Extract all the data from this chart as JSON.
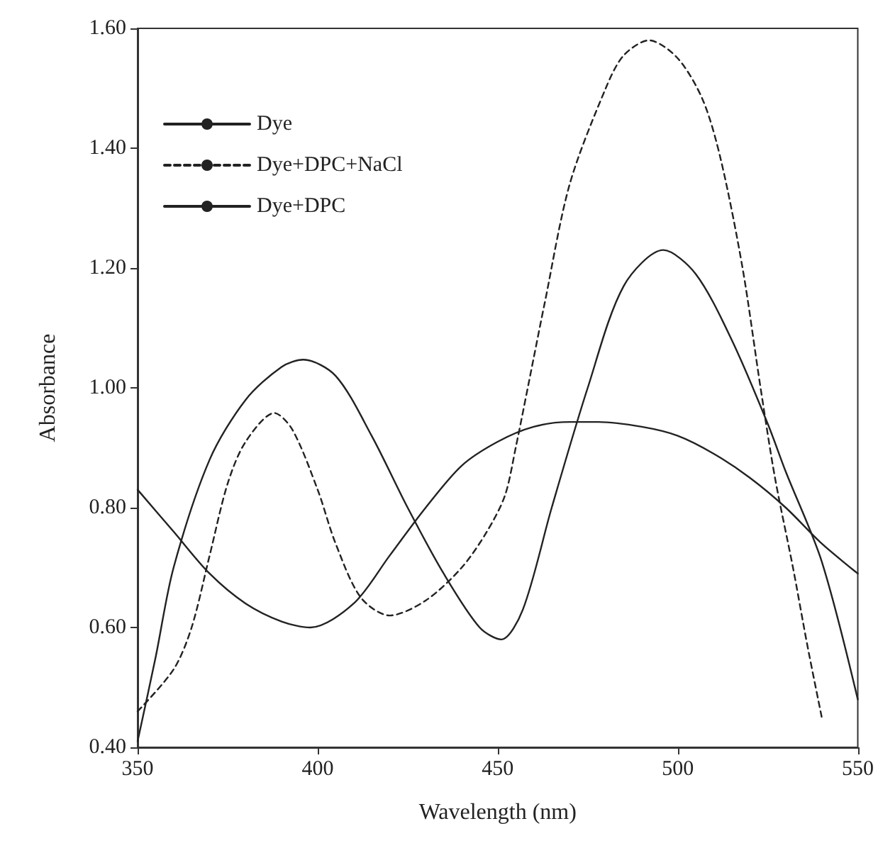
{
  "chart_data": {
    "type": "line",
    "xlabel": "Wavelength (nm)",
    "ylabel": "Absorbance",
    "xlim": [
      350,
      550
    ],
    "xticks": [
      350,
      400,
      450,
      500,
      550
    ],
    "ylim": [
      0.4,
      1.6
    ],
    "yticks": [
      {
        "value": 0.4,
        "label": "0.40"
      },
      {
        "value": 0.6,
        "label": "0.60"
      },
      {
        "value": 0.8,
        "label": "0.80"
      },
      {
        "value": 1.0,
        "label": "1.00"
      },
      {
        "value": 1.2,
        "label": "1.20"
      },
      {
        "value": 1.4,
        "label": "1.40"
      },
      {
        "value": 1.6,
        "label": "1.60"
      }
    ],
    "grid": false,
    "legend": "top left",
    "marker": "none",
    "series": [
      {
        "name": "Dye",
        "color": "#222222",
        "line_style": "solid",
        "x": [
          350,
          360,
          370,
          380,
          390,
          398,
          410,
          420,
          430,
          440,
          450,
          460,
          470,
          478,
          490,
          500,
          510,
          520,
          530,
          540,
          550
        ],
        "values": [
          0.83,
          0.76,
          0.69,
          0.64,
          0.61,
          0.6,
          0.64,
          0.72,
          0.8,
          0.87,
          0.91,
          0.935,
          0.943,
          0.943,
          0.935,
          0.92,
          0.89,
          0.85,
          0.8,
          0.74,
          0.69
        ]
      },
      {
        "name": "Dye+DPC+NaCl",
        "color": "#222222",
        "line_style": "dashed",
        "x": [
          350,
          360,
          365,
          370,
          375,
          380,
          388,
          393,
          400,
          405,
          412,
          420,
          430,
          440,
          447,
          452,
          455,
          460,
          463,
          470,
          480,
          485,
          492,
          500,
          507,
          512,
          518,
          523,
          527,
          532,
          536,
          540
        ],
        "values": [
          0.46,
          0.53,
          0.6,
          0.72,
          0.84,
          0.91,
          0.958,
          0.93,
          0.83,
          0.74,
          0.65,
          0.62,
          0.645,
          0.7,
          0.76,
          0.82,
          0.9,
          1.05,
          1.14,
          1.34,
          1.5,
          1.555,
          1.58,
          1.55,
          1.48,
          1.38,
          1.2,
          1.0,
          0.85,
          0.7,
          0.57,
          0.45
        ]
      },
      {
        "name": "Dye+DPC",
        "color": "#222222",
        "line_style": "solid",
        "x": [
          350,
          355,
          360,
          370,
          380,
          390,
          396,
          405,
          415,
          425,
          435,
          445,
          451,
          457,
          465,
          475,
          485,
          496,
          505,
          515,
          525,
          530,
          540,
          550
        ],
        "values": [
          0.41,
          0.55,
          0.7,
          0.88,
          0.98,
          1.035,
          1.047,
          1.02,
          0.92,
          0.8,
          0.69,
          0.6,
          0.58,
          0.63,
          0.8,
          1.0,
          1.17,
          1.23,
          1.19,
          1.08,
          0.94,
          0.86,
          0.71,
          0.48
        ]
      }
    ]
  }
}
